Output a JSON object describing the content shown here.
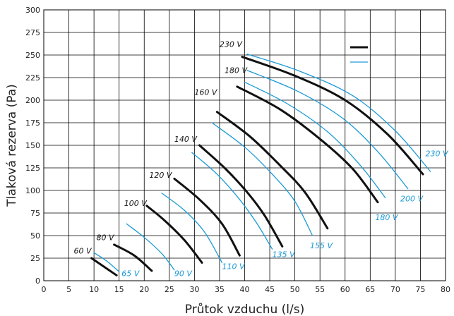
{
  "chart_data": {
    "type": "line",
    "xlabel": "Průtok vzduchu (l/s)",
    "ylabel": "Tlaková rezerva (Pa)",
    "xlim": [
      0,
      80
    ],
    "ylim": [
      0,
      300
    ],
    "xticks": [
      0,
      5,
      10,
      15,
      20,
      25,
      30,
      35,
      40,
      45,
      50,
      55,
      60,
      65,
      70,
      75,
      80
    ],
    "yticks": [
      0,
      25,
      50,
      75,
      100,
      125,
      150,
      175,
      200,
      225,
      250,
      275,
      300
    ],
    "grid": true,
    "legend": "top-right",
    "colors": {
      "black": "#111111",
      "blue": "#1b9ad6"
    },
    "series": [
      {
        "label": "60 V",
        "color": "black",
        "points": [
          [
            9.5,
            25
          ],
          [
            14.5,
            6
          ]
        ]
      },
      {
        "label": "80 V",
        "color": "black",
        "points": [
          [
            14,
            40
          ],
          [
            18,
            28
          ],
          [
            21.5,
            11
          ]
        ]
      },
      {
        "label": "100 V",
        "color": "black",
        "points": [
          [
            20.5,
            83
          ],
          [
            24,
            67
          ],
          [
            28,
            45
          ],
          [
            31.5,
            20
          ]
        ]
      },
      {
        "label": "120 V",
        "color": "black",
        "points": [
          [
            26,
            113
          ],
          [
            31,
            90
          ],
          [
            35.5,
            63
          ],
          [
            39,
            28
          ]
        ]
      },
      {
        "label": "140 V",
        "color": "black",
        "points": [
          [
            31,
            150
          ],
          [
            36,
            125
          ],
          [
            40.5,
            98
          ],
          [
            44,
            72
          ],
          [
            47.5,
            38
          ]
        ]
      },
      {
        "label": "160 V",
        "color": "black",
        "points": [
          [
            34.5,
            187
          ],
          [
            41,
            160
          ],
          [
            47,
            128
          ],
          [
            52,
            98
          ],
          [
            56.5,
            58
          ]
        ]
      },
      {
        "label": "180 V",
        "color": "black",
        "points": [
          [
            38.5,
            215
          ],
          [
            47,
            190
          ],
          [
            55,
            157
          ],
          [
            61.5,
            124
          ],
          [
            66.5,
            87
          ]
        ]
      },
      {
        "label": "230 V",
        "color": "black",
        "points": [
          [
            39.5,
            248
          ],
          [
            50,
            227
          ],
          [
            60,
            200
          ],
          [
            68.5,
            162
          ],
          [
            75.5,
            118
          ]
        ]
      },
      {
        "label": "65 V",
        "color": "blue",
        "points": [
          [
            10,
            31
          ],
          [
            12.5,
            22
          ],
          [
            15,
            10
          ]
        ]
      },
      {
        "label": "90 V",
        "color": "blue",
        "points": [
          [
            16.5,
            63
          ],
          [
            20,
            48
          ],
          [
            23.5,
            30
          ],
          [
            26,
            12
          ]
        ]
      },
      {
        "label": "110 V",
        "color": "blue",
        "points": [
          [
            23.5,
            97
          ],
          [
            28,
            78
          ],
          [
            32,
            54
          ],
          [
            35.5,
            20
          ]
        ]
      },
      {
        "label": "135 V",
        "color": "blue",
        "points": [
          [
            29.5,
            142
          ],
          [
            34.5,
            118
          ],
          [
            39,
            90
          ],
          [
            42.5,
            63
          ],
          [
            45.5,
            35
          ]
        ]
      },
      {
        "label": "155 V",
        "color": "blue",
        "points": [
          [
            33.5,
            175
          ],
          [
            40,
            148
          ],
          [
            45.5,
            118
          ],
          [
            50,
            88
          ],
          [
            53.5,
            50
          ]
        ]
      },
      {
        "label": "180 V",
        "color": "blue",
        "points": [
          [
            40,
            220
          ],
          [
            48.5,
            196
          ],
          [
            56.5,
            165
          ],
          [
            63,
            128
          ],
          [
            68,
            92
          ]
        ]
      },
      {
        "label": "200 V",
        "color": "blue",
        "points": [
          [
            40.5,
            233
          ],
          [
            50.5,
            210
          ],
          [
            59.5,
            180
          ],
          [
            66.5,
            143
          ],
          [
            72.5,
            102
          ]
        ]
      },
      {
        "label": "230 V",
        "color": "blue",
        "points": [
          [
            40.5,
            251
          ],
          [
            51,
            232
          ],
          [
            61.5,
            205
          ],
          [
            70,
            166
          ],
          [
            77,
            121
          ]
        ]
      }
    ]
  },
  "curve_labels": [
    {
      "text": "60 V",
      "color": "black",
      "at": [
        9.5,
        30
      ]
    },
    {
      "text": "80 V",
      "color": "black",
      "at": [
        14,
        45
      ]
    },
    {
      "text": "100 V",
      "color": "black",
      "at": [
        20.5,
        83
      ]
    },
    {
      "text": "120 V",
      "color": "black",
      "at": [
        25.5,
        114
      ]
    },
    {
      "text": "140 V",
      "color": "black",
      "at": [
        30.5,
        154
      ]
    },
    {
      "text": "160 V",
      "color": "black",
      "at": [
        34.5,
        206
      ]
    },
    {
      "text": "180 V",
      "color": "black",
      "at": [
        40.5,
        230
      ]
    },
    {
      "text": "230 V",
      "color": "black",
      "at": [
        39.5,
        259
      ]
    },
    {
      "text": "65 V",
      "color": "blue",
      "at": [
        15.5,
        5
      ]
    },
    {
      "text": "90 V",
      "color": "blue",
      "at": [
        26,
        5
      ]
    },
    {
      "text": "110 V",
      "color": "blue",
      "at": [
        35.5,
        13
      ]
    },
    {
      "text": "135 V",
      "color": "blue",
      "at": [
        45.5,
        26
      ]
    },
    {
      "text": "155 V",
      "color": "blue",
      "at": [
        53,
        36
      ]
    },
    {
      "text": "180 V",
      "color": "blue",
      "at": [
        66,
        67
      ]
    },
    {
      "text": "200 V",
      "color": "blue",
      "at": [
        71,
        88
      ]
    },
    {
      "text": "230 V",
      "color": "blue",
      "at": [
        76,
        138
      ]
    }
  ]
}
